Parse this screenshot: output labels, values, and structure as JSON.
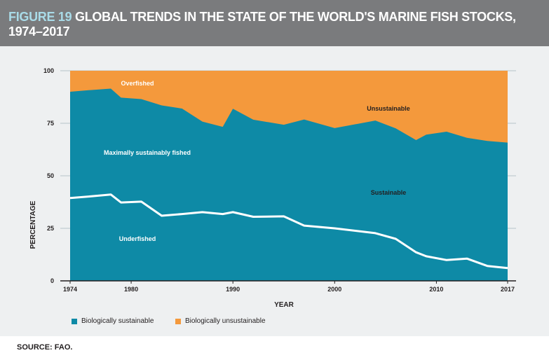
{
  "header": {
    "figure_label": "FIGURE 19",
    "title": "GLOBAL TRENDS IN THE STATE OF THE WORLD'S MARINE FISH STOCKS, 1974–2017"
  },
  "source": "SOURCE: FAO.",
  "colors": {
    "sustainable": "#0e8aa6",
    "unsustainable": "#f4993c",
    "underfished_line": "#ffffff",
    "header_bg": "#7a7b7d",
    "panel_bg": "#eef0f1"
  },
  "chart_data": {
    "type": "area",
    "ylabel": "PERCENTAGE",
    "xlabel": "YEAR",
    "ylim": [
      0,
      100
    ],
    "xlim": [
      1974,
      2017
    ],
    "y_ticks": [
      0,
      25,
      50,
      75,
      100
    ],
    "x_ticks": [
      1974,
      1980,
      1990,
      2000,
      2010,
      2017
    ],
    "grid": true,
    "legend_position": "bottom-left",
    "legend": [
      "Biologically sustainable",
      "Biologically unsustainable"
    ],
    "annotations": [
      "Overfished",
      "Unsustainable",
      "Maximally sustainably fished",
      "Sustainable",
      "Underfished"
    ],
    "x": [
      1974,
      1976,
      1978,
      1979,
      1981,
      1983,
      1985,
      1987,
      1989,
      1990,
      1992,
      1995,
      1997,
      2000,
      2004,
      2006,
      2008,
      2009,
      2011,
      2013,
      2015,
      2017
    ],
    "series": [
      {
        "name": "Biologically sustainable",
        "values": [
          90,
          90.8,
          91.5,
          87.2,
          86.5,
          83.5,
          82,
          75.8,
          73.3,
          81.9,
          76.7,
          74.3,
          76.8,
          72.7,
          76.3,
          72.6,
          67,
          69.6,
          71,
          68.1,
          66.6,
          65.8
        ]
      },
      {
        "name": "Underfished",
        "values": [
          39.4,
          40.2,
          41.1,
          37.3,
          37.7,
          31,
          31.8,
          32.7,
          31.8,
          32.7,
          30.5,
          30.7,
          26.3,
          25,
          22.7,
          20,
          13.6,
          11.7,
          9.9,
          10.6,
          7.1,
          6.1
        ]
      }
    ]
  }
}
